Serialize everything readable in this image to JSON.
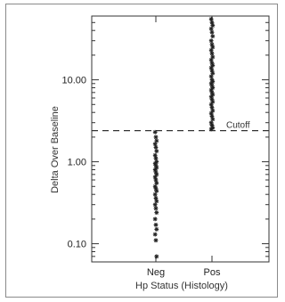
{
  "chart_data": {
    "type": "scatter",
    "title": "",
    "xlabel": "Hp Status (Histology)",
    "ylabel": "Delta Over Baseline",
    "y_scale": "log",
    "ylim": [
      0.06,
      60
    ],
    "categories": [
      "Neg",
      "Pos"
    ],
    "y_tick_labels": [
      "0.10",
      "1.00",
      "10.00"
    ],
    "y_tick_values": [
      0.1,
      1,
      10
    ],
    "cutoff": {
      "label": "Cutoff",
      "value": 2.4
    },
    "series": [
      {
        "category": "Neg",
        "values": [
          2.3,
          2.0,
          1.8,
          1.65,
          1.5,
          1.35,
          1.2,
          1.1,
          1.0,
          0.95,
          0.9,
          0.85,
          0.8,
          0.75,
          0.7,
          0.65,
          0.6,
          0.55,
          0.5,
          0.47,
          0.44,
          0.4,
          0.36,
          0.33,
          0.3,
          0.27,
          0.24,
          0.2,
          0.17,
          0.15,
          0.13,
          0.11,
          0.07
        ]
      },
      {
        "category": "Pos",
        "values": [
          55,
          50,
          46,
          42,
          38,
          34,
          30,
          27,
          25,
          23,
          21,
          19,
          17.5,
          16,
          15,
          14,
          13,
          12,
          11,
          10,
          9.5,
          9,
          8.5,
          8,
          7.5,
          7,
          6.6,
          6.2,
          5.8,
          5.4,
          5,
          4.6,
          4.2,
          3.9,
          3.6,
          3.3,
          3.0,
          2.8,
          2.6,
          2.5
        ]
      }
    ],
    "grid": false,
    "legend": "none"
  }
}
